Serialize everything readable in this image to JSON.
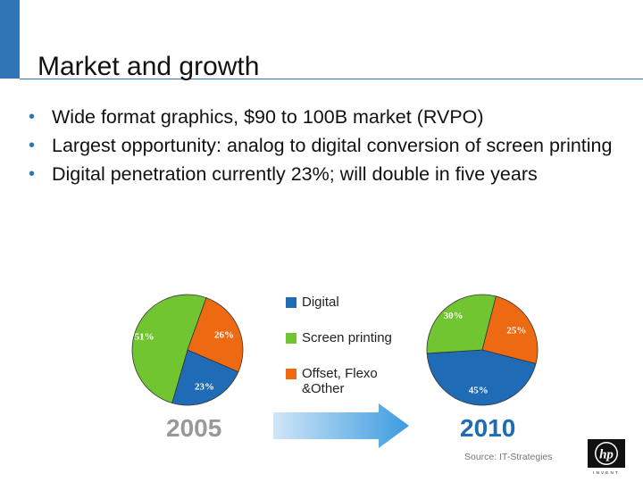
{
  "slide": {
    "title": "Market and growth",
    "bullets": [
      "Wide format graphics, $90 to 100B market (RVPO)",
      "Largest opportunity: analog to digital conversion of screen printing",
      "Digital penetration currently 23%; will double in five years"
    ],
    "source": "Source: IT-Strategies"
  },
  "colors": {
    "accent": "#2E76B6",
    "digital": "#1F6BB5",
    "screen_printing": "#70C531",
    "offset": "#EE6A12",
    "year_2005": "#999999",
    "year_2010": "#1F6BB5",
    "arrow": "#3C9BE0"
  },
  "chart_data": [
    {
      "type": "pie",
      "title": "2005",
      "categories": [
        "Digital",
        "Screen printing",
        "Offset, Flexo &Other"
      ],
      "values": [
        23,
        51,
        26
      ],
      "labels": [
        "23%",
        "51%",
        "26%"
      ]
    },
    {
      "type": "pie",
      "title": "2010",
      "categories": [
        "Digital",
        "Screen printing",
        "Offset, Flexo &Other"
      ],
      "values": [
        45,
        30,
        25
      ],
      "labels": [
        "45%",
        "30%",
        "25%"
      ]
    }
  ],
  "legend": {
    "placement": "between charts",
    "items": [
      "Digital",
      "Screen printing",
      "Offset, Flexo\n&Other"
    ]
  },
  "icons": {
    "arrow": "right-arrow-icon",
    "logo": "hp-logo-icon"
  },
  "logo_text": "hp"
}
